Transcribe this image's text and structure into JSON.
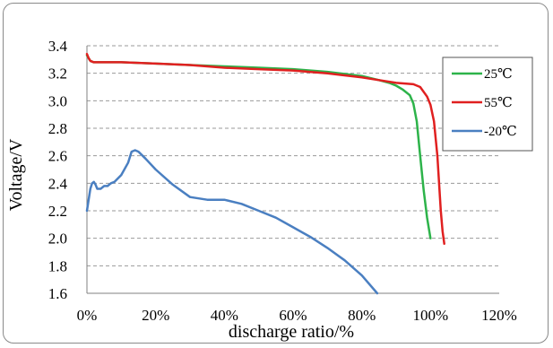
{
  "chart_data": {
    "type": "line",
    "xlabel": "discharge ratio/%",
    "ylabel": "Voltage/V",
    "xlim": [
      0,
      120
    ],
    "ylim": [
      1.6,
      3.4
    ],
    "xticks": [
      "0%",
      "20%",
      "40%",
      "60%",
      "80%",
      "100%",
      "120%"
    ],
    "xtick_values": [
      0,
      20,
      40,
      60,
      80,
      100,
      120
    ],
    "yticks": [
      "1.6",
      "1.8",
      "2.0",
      "2.2",
      "2.4",
      "2.6",
      "2.8",
      "3.0",
      "3.2",
      "3.4"
    ],
    "ytick_values": [
      1.6,
      1.8,
      2.0,
      2.2,
      2.4,
      2.6,
      2.8,
      3.0,
      3.2,
      3.4
    ],
    "grid": "horizontal dashed",
    "legend_position": "right",
    "series": [
      {
        "name": "25℃",
        "color": "#2db34a",
        "x": [
          0,
          0.5,
          1,
          2,
          5,
          10,
          20,
          30,
          40,
          50,
          60,
          70,
          80,
          85,
          88,
          90,
          92,
          94,
          95,
          96,
          97,
          98,
          99,
          100
        ],
        "y": [
          3.33,
          3.31,
          3.29,
          3.28,
          3.28,
          3.28,
          3.27,
          3.26,
          3.25,
          3.24,
          3.23,
          3.21,
          3.18,
          3.15,
          3.13,
          3.11,
          3.08,
          3.04,
          2.98,
          2.85,
          2.6,
          2.35,
          2.15,
          2.0
        ]
      },
      {
        "name": "55℃",
        "color": "#e02020",
        "x": [
          0,
          0.5,
          1,
          2,
          5,
          10,
          20,
          30,
          40,
          50,
          60,
          70,
          80,
          85,
          90,
          95,
          97,
          99,
          100,
          101,
          102,
          102.5,
          103,
          103.5,
          104
        ],
        "y": [
          3.34,
          3.31,
          3.29,
          3.28,
          3.28,
          3.28,
          3.27,
          3.26,
          3.24,
          3.23,
          3.22,
          3.2,
          3.17,
          3.15,
          3.13,
          3.12,
          3.1,
          3.03,
          2.97,
          2.85,
          2.6,
          2.4,
          2.2,
          2.05,
          1.96
        ]
      },
      {
        "name": "-20℃",
        "color": "#4a7fc1",
        "x": [
          0,
          0.5,
          1,
          1.5,
          2,
          2.5,
          3,
          4,
          5,
          6,
          7,
          8,
          10,
          12,
          13,
          14,
          15,
          17,
          20,
          25,
          30,
          35,
          40,
          45,
          50,
          55,
          60,
          65,
          70,
          75,
          80,
          84.5
        ],
        "y": [
          2.2,
          2.28,
          2.36,
          2.4,
          2.41,
          2.39,
          2.36,
          2.36,
          2.38,
          2.38,
          2.4,
          2.41,
          2.46,
          2.55,
          2.63,
          2.64,
          2.63,
          2.58,
          2.5,
          2.39,
          2.3,
          2.28,
          2.28,
          2.25,
          2.2,
          2.15,
          2.08,
          2.01,
          1.93,
          1.84,
          1.73,
          1.6
        ]
      }
    ]
  }
}
